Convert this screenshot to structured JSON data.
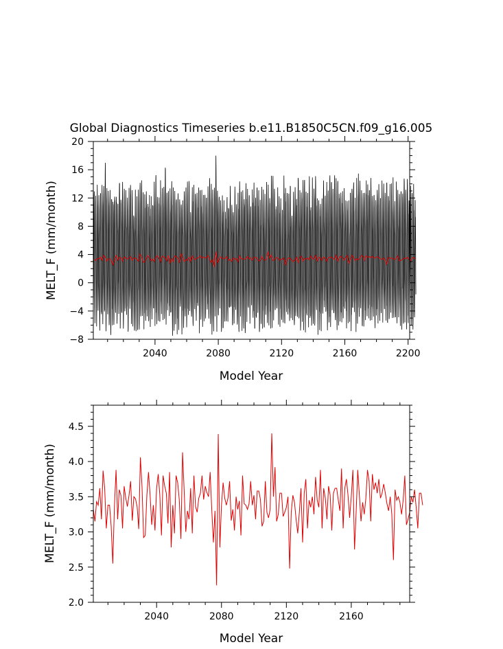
{
  "title": "Global Diagnostics Timeseries b.e11.B1850C5CN.f09_g16.005",
  "colors": {
    "monthly": "#000000",
    "annual": "#dd0000",
    "frame": "#000000"
  },
  "chart_data": [
    {
      "type": "line",
      "title": "Global Diagnostics Timeseries b.e11.B1850C5CN.f09_g16.005",
      "xlabel": "Model Year",
      "ylabel": "MELT_F (mm/month)",
      "xlim": [
        2001,
        2201
      ],
      "ylim": [
        -8,
        20
      ],
      "xticks": [
        2040,
        2080,
        2120,
        2160,
        2200
      ],
      "xtick_labels": [
        "2040",
        "2080",
        "2120",
        "2160",
        "2200"
      ],
      "yticks": [
        -8,
        -4,
        0,
        4,
        8,
        12,
        16,
        20
      ],
      "ytick_labels": [
        "−8",
        "−4",
        "0",
        "4",
        "8",
        "12",
        "16",
        "20"
      ],
      "grid": false,
      "series": [
        {
          "kind": "monthly",
          "color": "#000000",
          "annual_cycle_min": [
            -6,
            -4
          ],
          "annual_cycle_max": [
            11,
            14
          ],
          "notable_peaks": [
            [
              2008,
              16.2
            ],
            [
              2046,
              17.0
            ],
            [
              2078,
              17.3
            ]
          ]
        },
        {
          "kind": "annual_mean",
          "color": "#dd0000",
          "approx_mean": 3.4
        }
      ]
    },
    {
      "type": "line",
      "xlabel": "Model Year",
      "ylabel": "MELT_F (mm/month)",
      "xlim": [
        2001,
        2196
      ],
      "ylim": [
        2.0,
        4.8
      ],
      "xticks": [
        2040,
        2080,
        2120,
        2160
      ],
      "xtick_labels": [
        "2040",
        "2080",
        "2120",
        "2160"
      ],
      "yticks": [
        2.0,
        2.5,
        3.0,
        3.5,
        4.0,
        4.5
      ],
      "ytick_labels": [
        "2.0",
        "2.5",
        "3.0",
        "3.5",
        "4.0",
        "4.5"
      ],
      "grid": false,
      "series": [
        {
          "kind": "annual_mean",
          "color": "#dd0000",
          "x_start": 2001,
          "values": [
            3.32,
            3.15,
            3.43,
            3.38,
            3.62,
            3.18,
            3.87,
            3.62,
            3.05,
            3.38,
            3.38,
            3.08,
            2.55,
            3.35,
            3.88,
            3.18,
            3.6,
            3.52,
            3.05,
            3.65,
            3.48,
            3.36,
            3.52,
            3.72,
            3.16,
            3.5,
            3.47,
            3.36,
            3.04,
            4.06,
            3.65,
            2.92,
            2.95,
            3.52,
            3.85,
            3.52,
            3.1,
            3.38,
            3.02,
            3.62,
            3.82,
            3.52,
            2.95,
            3.8,
            3.65,
            3.55,
            3.12,
            3.85,
            2.78,
            3.38,
            2.98,
            3.8,
            3.7,
            3.45,
            2.9,
            4.13,
            3.58,
            3.0,
            3.3,
            3.18,
            3.62,
            2.98,
            3.8,
            3.36,
            3.28,
            3.48,
            3.55,
            3.8,
            3.46,
            3.65,
            3.56,
            3.5,
            3.85,
            3.32,
            2.85,
            3.3,
            2.24,
            4.39,
            2.78,
            3.38,
            3.7,
            3.48,
            3.38,
            3.48,
            3.72,
            3.16,
            3.32,
            3.02,
            3.5,
            3.32,
            3.44,
            2.95,
            3.8,
            3.4,
            3.38,
            3.32,
            3.4,
            3.72,
            3.38,
            3.52,
            3.18,
            3.58,
            3.58,
            3.46,
            3.08,
            3.15,
            3.72,
            3.28,
            3.2,
            3.32,
            4.4,
            3.5,
            3.92,
            3.15,
            3.25,
            3.55,
            3.55,
            3.22,
            3.28,
            3.35,
            3.5,
            2.48,
            3.28,
            3.52,
            3.42,
            3.18,
            2.98,
            3.28,
            3.62,
            2.85,
            3.55,
            3.75,
            3.05,
            3.45,
            3.35,
            3.5,
            3.25,
            3.78,
            3.45,
            3.35,
            3.88,
            3.05,
            3.62,
            3.48,
            3.18,
            3.65,
            3.52,
            3.02,
            3.55,
            3.62,
            3.62,
            3.45,
            3.3,
            3.9,
            3.05,
            3.62,
            3.75,
            3.52,
            3.2,
            3.5,
            3.88,
            2.75,
            3.28,
            3.88,
            3.52,
            3.15,
            3.42,
            3.25,
            3.48,
            3.88,
            3.72,
            3.15,
            3.82,
            3.6,
            3.7,
            3.55,
            3.75,
            3.48,
            3.55,
            3.68,
            3.55,
            3.4,
            3.3,
            3.5,
            3.25,
            2.6,
            3.6,
            3.45,
            3.5,
            3.42,
            3.25,
            3.45,
            3.8,
            3.1,
            3.18,
            3.28,
            3.5,
            3.42,
            3.6,
            3.35,
            3.05,
            3.55,
            3.55,
            3.38
          ]
        }
      ]
    }
  ]
}
